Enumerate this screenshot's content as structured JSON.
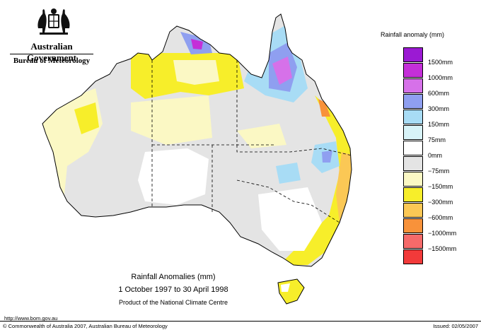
{
  "header": {
    "government": "Australian Government",
    "bureau": "Bureau of Meteorology"
  },
  "legend": {
    "title": "Rainfall anomaly (mm)",
    "items": [
      {
        "label": "1500mm",
        "color": "#9b1ad3"
      },
      {
        "label": "1000mm",
        "color": "#c42fd8"
      },
      {
        "label": "600mm",
        "color": "#d671e9"
      },
      {
        "label": "300mm",
        "color": "#8f9ff0"
      },
      {
        "label": "150mm",
        "color": "#a8dcf5"
      },
      {
        "label": "75mm",
        "color": "#d8f3f8"
      },
      {
        "label": "0mm",
        "color": "#ffffff"
      },
      {
        "label": "−75mm",
        "color": "#e4e4e4"
      },
      {
        "label": "−150mm",
        "color": "#fbf8c4"
      },
      {
        "label": "−300mm",
        "color": "#f7ee2a"
      },
      {
        "label": "−600mm",
        "color": "#fbc855"
      },
      {
        "label": "−1000mm",
        "color": "#f8923a"
      },
      {
        "label": "−1500mm",
        "color": "#f56a6a"
      },
      {
        "label": "",
        "color": "#f23a3a"
      }
    ]
  },
  "caption": {
    "title": "Rainfall Anomalies (mm)",
    "period": "1 October 1997 to 30 April 1998",
    "source": "Product of the National Climate Centre"
  },
  "footer": {
    "url": "http://www.bom.gov.au",
    "copyright": "© Commonwealth of Australia 2007, Australian Bureau of Meteorology",
    "issued": "Issued: 02/05/2007"
  }
}
